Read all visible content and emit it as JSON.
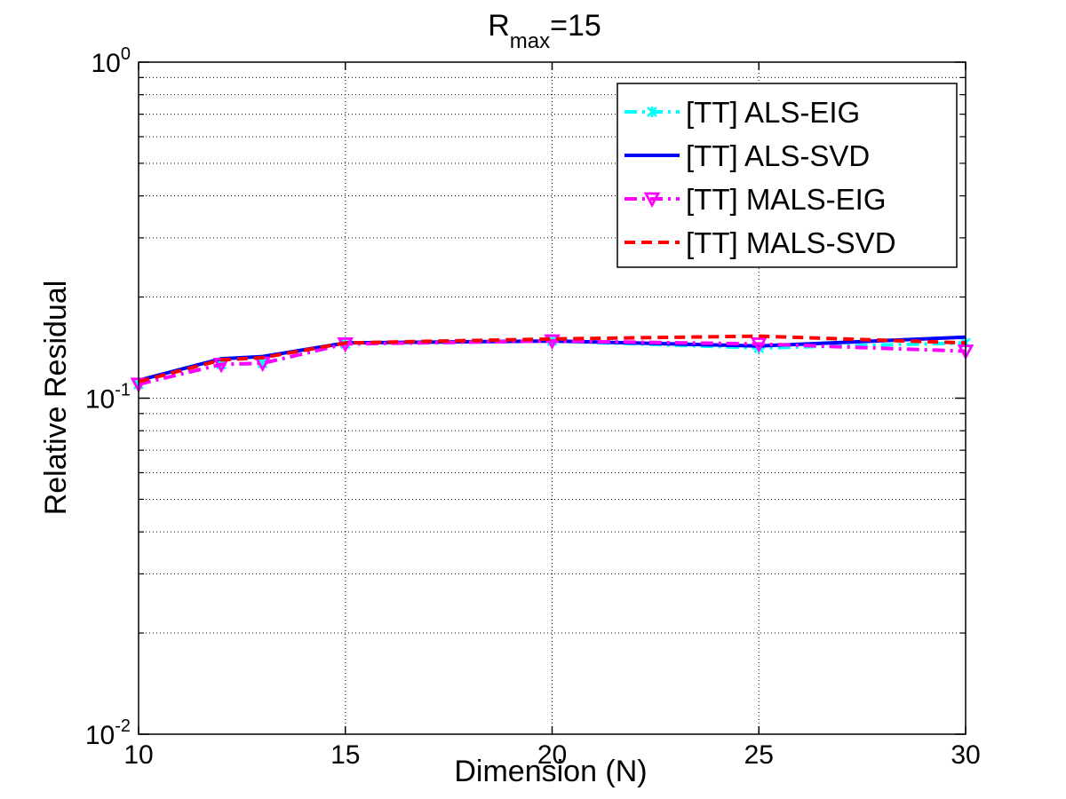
{
  "chart_data": {
    "type": "line",
    "title": {
      "main": "R",
      "subscript": "max",
      "suffix": "=15"
    },
    "xlabel": "Dimension (N)",
    "ylabel": "Relative Residual",
    "xlim": [
      10,
      30
    ],
    "ylim": [
      0.01,
      1
    ],
    "yscale": "log",
    "grid": true,
    "legend_position": "top-right",
    "x_ticks": [
      "10",
      "15",
      "20",
      "25",
      "30"
    ],
    "y_ticks": [
      {
        "base": "10",
        "exp": "-2"
      },
      {
        "base": "10",
        "exp": "-1"
      },
      {
        "base": "10",
        "exp": "0"
      }
    ],
    "x": [
      10,
      12,
      13,
      15,
      20,
      25,
      30
    ],
    "series": [
      {
        "name": "[TT] ALS-EIG",
        "color": "#00ffff",
        "style": "dash-dot",
        "marker": "x",
        "values": [
          0.11,
          0.126,
          0.127,
          0.145,
          0.148,
          0.141,
          0.146
        ]
      },
      {
        "name": "[TT] ALS-SVD",
        "color": "#0000ff",
        "style": "solid",
        "marker": "none",
        "values": [
          0.113,
          0.131,
          0.133,
          0.146,
          0.148,
          0.143,
          0.152
        ]
      },
      {
        "name": "[TT] MALS-EIG",
        "color": "#ff00ff",
        "style": "dash-dot",
        "marker": "triangle-down",
        "values": [
          0.11,
          0.126,
          0.127,
          0.145,
          0.148,
          0.145,
          0.138
        ]
      },
      {
        "name": "[TT] MALS-SVD",
        "color": "#ff0000",
        "style": "dashed",
        "marker": "none",
        "values": [
          0.112,
          0.13,
          0.132,
          0.146,
          0.15,
          0.153,
          0.146
        ]
      }
    ]
  }
}
